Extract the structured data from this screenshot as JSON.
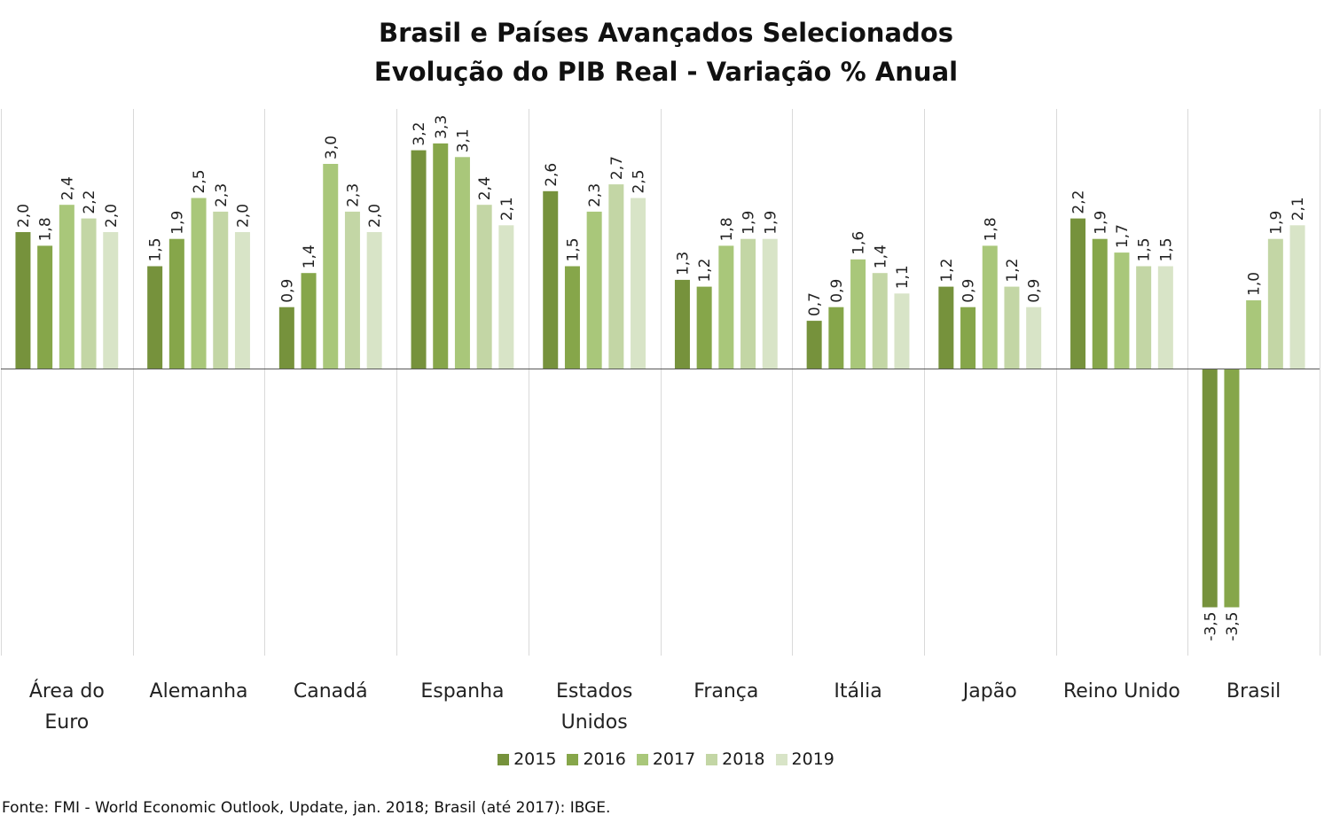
{
  "chart_data": {
    "type": "bar",
    "title_line1": "Brasil e Países Avançados Selecionados",
    "title_line2": "Evolução do PIB Real - Variação % Anual",
    "categories": [
      [
        "Área do",
        "Euro"
      ],
      [
        "Alemanha"
      ],
      [
        "Canadá"
      ],
      [
        "Espanha"
      ],
      [
        "Estados",
        "Unidos"
      ],
      [
        "França"
      ],
      [
        "Itália"
      ],
      [
        "Japão"
      ],
      [
        "Reino Unido"
      ],
      [
        "Brasil"
      ]
    ],
    "series": [
      {
        "name": "2015",
        "color": "#76923c",
        "values": [
          2.0,
          1.5,
          0.9,
          3.2,
          2.6,
          1.3,
          0.7,
          1.2,
          2.2,
          -3.5
        ]
      },
      {
        "name": "2016",
        "color": "#86a64a",
        "values": [
          1.8,
          1.9,
          1.4,
          3.3,
          1.5,
          1.2,
          0.9,
          0.9,
          1.9,
          -3.5
        ]
      },
      {
        "name": "2017",
        "color": "#a9c77a",
        "values": [
          2.4,
          2.5,
          3.0,
          3.1,
          2.3,
          1.8,
          1.6,
          1.8,
          1.7,
          1.0
        ]
      },
      {
        "name": "2018",
        "color": "#c3d6a5",
        "values": [
          2.2,
          2.3,
          2.3,
          2.4,
          2.7,
          1.9,
          1.4,
          1.2,
          1.5,
          1.9
        ]
      },
      {
        "name": "2019",
        "color": "#d8e4c7",
        "values": [
          2.0,
          2.0,
          2.0,
          2.1,
          2.5,
          1.9,
          1.1,
          0.9,
          1.5,
          2.1
        ]
      }
    ],
    "value_labels": [
      [
        "2,0",
        "1,5",
        "0,9",
        "3,2",
        "2,6",
        "1,3",
        "0,7",
        "1,2",
        "2,2",
        "-3,5"
      ],
      [
        "1,8",
        "1,9",
        "1,4",
        "3,3",
        "1,5",
        "1,2",
        "0,9",
        "0,9",
        "1,9",
        "-3,5"
      ],
      [
        "2,4",
        "2,5",
        "3,0",
        "3,1",
        "2,3",
        "1,8",
        "1,6",
        "1,8",
        "1,7",
        "1,0"
      ],
      [
        "2,2",
        "2,3",
        "2,3",
        "2,4",
        "2,7",
        "1,9",
        "1,4",
        "1,2",
        "1,5",
        "1,9"
      ],
      [
        "2,0",
        "2,0",
        "2,0",
        "2,1",
        "2,5",
        "1,9",
        "1,1",
        "0,9",
        "1,5",
        "2,1"
      ]
    ],
    "ylim": [
      -4.2,
      3.8
    ],
    "legend_position": "bottom",
    "grid": false,
    "category_separators": true
  },
  "source_note": "Fonte: FMI - World Economic Outlook, Update, jan. 2018; Brasil (até 2017): IBGE."
}
